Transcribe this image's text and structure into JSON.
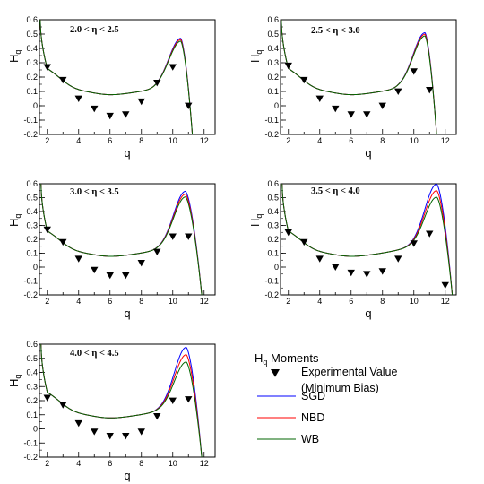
{
  "chart_data": [
    {
      "type": "line",
      "title": "2.0 <  η < 2.5",
      "xlabel": "q",
      "ylabel": {
        "base": "H",
        "sub": "q"
      },
      "xlim": [
        1.5,
        12.7
      ],
      "ylim": [
        -0.2,
        0.6
      ],
      "xticks": [
        2,
        4,
        6,
        8,
        10,
        12
      ],
      "yticks": [
        -0.2,
        -0.1,
        0,
        0.1,
        0.2,
        0.3,
        0.4,
        0.5,
        0.6
      ],
      "x_minor_step": 1,
      "params": {
        "base": 0.31,
        "scale": 0.95,
        "spread": [
          1.03,
          1.0,
          0.965
        ],
        "xPeak": 10.5,
        "xEnd": 11.25,
        "xLeft": 1.55,
        "yLeft": 0.6
      },
      "experimental": {
        "x": [
          2,
          3,
          4,
          5,
          6,
          7,
          8,
          9,
          10,
          11
        ],
        "y": [
          0.27,
          0.18,
          0.05,
          -0.02,
          -0.07,
          -0.06,
          0.03,
          0.16,
          0.27,
          0.0
        ]
      }
    },
    {
      "type": "line",
      "title": "2.5 <  η < 3.0",
      "xlabel": "q",
      "ylabel": {
        "base": "H",
        "sub": "q"
      },
      "xlim": [
        1.5,
        12.7
      ],
      "ylim": [
        -0.2,
        0.6
      ],
      "xticks": [
        2,
        4,
        6,
        8,
        10,
        12
      ],
      "yticks": [
        -0.2,
        -0.1,
        0,
        0.1,
        0.2,
        0.3,
        0.4,
        0.5,
        0.6
      ],
      "x_minor_step": 1,
      "params": {
        "base": 0.345,
        "scale": 0.95,
        "spread": [
          1.03,
          1.0,
          0.965
        ],
        "xPeak": 10.7,
        "xEnd": 11.45,
        "xLeft": 1.55,
        "yLeft": 0.6
      },
      "experimental": {
        "x": [
          2,
          3,
          4,
          5,
          6,
          7,
          8,
          9,
          10,
          11
        ],
        "y": [
          0.28,
          0.18,
          0.05,
          -0.02,
          -0.06,
          -0.06,
          0.0,
          0.1,
          0.24,
          0.11
        ]
      }
    },
    {
      "type": "line",
      "title": "3.0 <  η < 3.5",
      "xlabel": "q",
      "ylabel": {
        "base": "H",
        "sub": "q"
      },
      "xlim": [
        1.5,
        12.7
      ],
      "ylim": [
        -0.2,
        0.6
      ],
      "xticks": [
        2,
        4,
        6,
        8,
        10,
        12
      ],
      "yticks": [
        -0.2,
        -0.1,
        0,
        0.1,
        0.2,
        0.3,
        0.4,
        0.5,
        0.6
      ],
      "x_minor_step": 1,
      "params": {
        "base": 0.37,
        "scale": 0.95,
        "spread": [
          1.055,
          1.0,
          0.945
        ],
        "xPeak": 10.8,
        "xEnd": 11.85,
        "xLeft": 1.6,
        "yLeft": 0.6
      },
      "experimental": {
        "x": [
          2,
          3,
          4,
          5,
          6,
          7,
          8,
          9,
          10,
          11
        ],
        "y": [
          0.27,
          0.18,
          0.06,
          -0.02,
          -0.06,
          -0.06,
          0.03,
          0.11,
          0.22,
          0.22
        ]
      }
    },
    {
      "type": "line",
      "title": "3.5 <  η < 4.0",
      "xlabel": "q",
      "ylabel": {
        "base": "H",
        "sub": "q"
      },
      "xlim": [
        1.5,
        12.7
      ],
      "ylim": [
        -0.2,
        0.6
      ],
      "xticks": [
        2,
        4,
        6,
        8,
        10,
        12
      ],
      "yticks": [
        -0.2,
        -0.1,
        0,
        0.1,
        0.2,
        0.3,
        0.4,
        0.5,
        0.6
      ],
      "x_minor_step": 1,
      "params": {
        "base": 0.39,
        "scale": 0.97,
        "spread": [
          1.12,
          1.0,
          0.88
        ],
        "xPeak": 11.45,
        "xEnd": 12.45,
        "xLeft": 1.6,
        "yLeft": 0.6
      },
      "experimental": {
        "x": [
          2,
          3,
          4,
          5,
          6,
          7,
          8,
          9,
          10,
          11,
          12
        ],
        "y": [
          0.25,
          0.18,
          0.06,
          0.0,
          -0.04,
          -0.05,
          -0.03,
          0.06,
          0.17,
          0.24,
          -0.13
        ]
      }
    },
    {
      "type": "line",
      "title": "4.0 <  η < 4.5",
      "xlabel": "q",
      "ylabel": {
        "base": "H",
        "sub": "q"
      },
      "xlim": [
        1.5,
        12.7
      ],
      "ylim": [
        -0.2,
        0.6
      ],
      "xticks": [
        2,
        4,
        6,
        8,
        10,
        12
      ],
      "yticks": [
        -0.2,
        -0.1,
        0,
        0.1,
        0.2,
        0.3,
        0.4,
        0.5,
        0.6
      ],
      "x_minor_step": 1,
      "params": {
        "base": 0.37,
        "scale": 0.97,
        "spread": [
          1.14,
          1.0,
          0.86
        ],
        "xPeak": 10.85,
        "xEnd": 11.85,
        "xLeft": 1.6,
        "yLeft": 0.6
      },
      "experimental": {
        "x": [
          2,
          3,
          4,
          5,
          6,
          7,
          8,
          9,
          10,
          11
        ],
        "y": [
          0.22,
          0.17,
          0.04,
          -0.02,
          -0.05,
          -0.05,
          -0.02,
          0.09,
          0.2,
          0.21
        ]
      }
    }
  ],
  "legend": {
    "title": {
      "base": "H",
      "sub": "q",
      "rest": " Moments"
    },
    "entries": [
      {
        "kind": "marker",
        "lines": [
          "Experimental Value",
          "(Minimum Bias)"
        ]
      },
      {
        "kind": "line",
        "label": "SGD",
        "color": "#0000ff"
      },
      {
        "kind": "line",
        "label": "NBD",
        "color": "#ff0000"
      },
      {
        "kind": "line",
        "label": "WB",
        "color": "#006600"
      }
    ]
  },
  "series_colors": [
    "#0000ff",
    "#ff0000",
    "#006600"
  ],
  "marker_color": "#000000"
}
